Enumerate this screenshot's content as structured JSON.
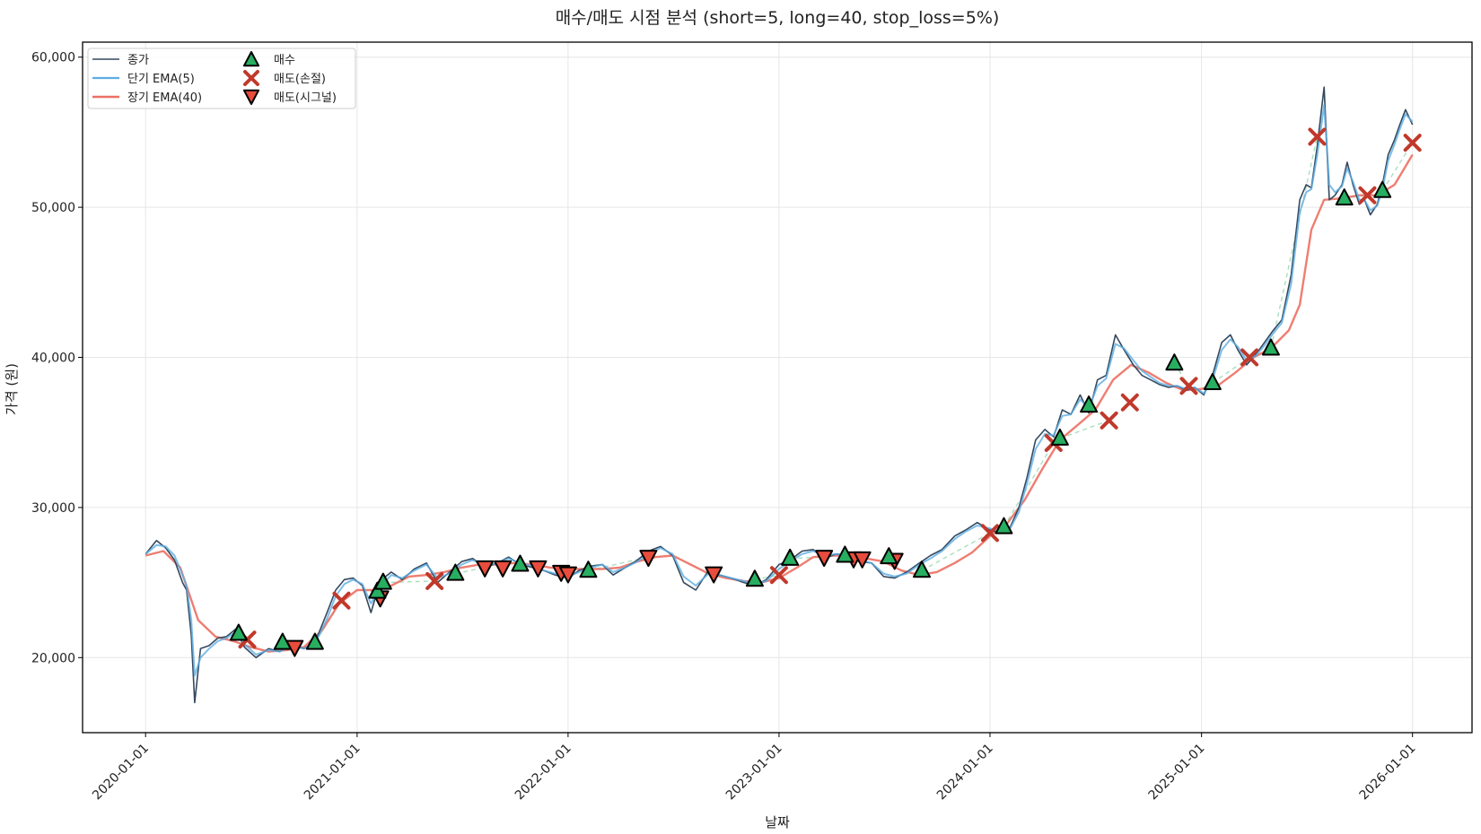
{
  "chart_data": {
    "type": "line",
    "title": "매수/매도 시점 분석 (short=5, long=40, stop_loss=5%)",
    "xlabel": "날짜",
    "ylabel": "가격 (원)",
    "ylim": [
      15000,
      61000
    ],
    "xlim": [
      "2019-09-14",
      "2026-04-14"
    ],
    "grid": true,
    "legend_position": "top-left",
    "x_ticks": [
      "2020-01-01",
      "2021-01-01",
      "2022-01-01",
      "2023-01-01",
      "2024-01-01",
      "2025-01-01",
      "2026-01-01"
    ],
    "y_ticks": [
      20000,
      30000,
      40000,
      50000,
      60000
    ],
    "y_tick_labels": [
      "20,000",
      "30,000",
      "40,000",
      "50,000",
      "60,000"
    ],
    "colors": {
      "close": "#34495e",
      "short_ema": "#5dade2",
      "long_ema": "#ec7063",
      "buy": "#27ae60",
      "sell_stop": "#c0392b",
      "sell_signal": "#e74c3c",
      "trade_line": "#a9dfbf"
    },
    "series": [
      {
        "name": "종가",
        "style": "line",
        "x": [
          "2020-01-01",
          "2020-01-20",
          "2020-02-05",
          "2020-02-20",
          "2020-03-05",
          "2020-03-12",
          "2020-03-20",
          "2020-03-26",
          "2020-04-05",
          "2020-04-20",
          "2020-05-05",
          "2020-05-20",
          "2020-06-05",
          "2020-06-20",
          "2020-07-10",
          "2020-08-01",
          "2020-08-20",
          "2020-09-10",
          "2020-10-01",
          "2020-10-20",
          "2020-11-10",
          "2020-11-25",
          "2020-12-10",
          "2020-12-25",
          "2021-01-10",
          "2021-01-25",
          "2021-02-10",
          "2021-03-01",
          "2021-03-20",
          "2021-04-10",
          "2021-05-01",
          "2021-05-20",
          "2021-06-10",
          "2021-07-01",
          "2021-07-20",
          "2021-08-10",
          "2021-09-01",
          "2021-09-20",
          "2021-10-10",
          "2021-11-01",
          "2021-11-20",
          "2021-12-10",
          "2022-01-01",
          "2022-01-20",
          "2022-02-10",
          "2022-03-01",
          "2022-03-20",
          "2022-04-10",
          "2022-05-01",
          "2022-05-20",
          "2022-06-10",
          "2022-07-01",
          "2022-07-20",
          "2022-08-10",
          "2022-09-01",
          "2022-09-20",
          "2022-10-10",
          "2022-11-01",
          "2022-11-20",
          "2022-12-10",
          "2023-01-01",
          "2023-01-20",
          "2023-02-10",
          "2023-03-01",
          "2023-03-20",
          "2023-04-10",
          "2023-05-01",
          "2023-05-20",
          "2023-06-10",
          "2023-07-01",
          "2023-07-20",
          "2023-08-10",
          "2023-09-01",
          "2023-09-20",
          "2023-10-10",
          "2023-11-01",
          "2023-11-20",
          "2023-12-10",
          "2024-01-01",
          "2024-01-20",
          "2024-02-05",
          "2024-02-20",
          "2024-03-05",
          "2024-03-20",
          "2024-04-05",
          "2024-04-20",
          "2024-05-05",
          "2024-05-20",
          "2024-06-05",
          "2024-06-20",
          "2024-07-05",
          "2024-07-20",
          "2024-08-05",
          "2024-08-20",
          "2024-09-05",
          "2024-09-20",
          "2024-10-05",
          "2024-10-20",
          "2024-11-05",
          "2024-11-20",
          "2024-12-05",
          "2024-12-20",
          "2025-01-05",
          "2025-01-20",
          "2025-02-05",
          "2025-02-20",
          "2025-03-05",
          "2025-03-20",
          "2025-04-05",
          "2025-04-20",
          "2025-05-05",
          "2025-05-20",
          "2025-06-05",
          "2025-06-20",
          "2025-07-01",
          "2025-07-10",
          "2025-07-20",
          "2025-08-01",
          "2025-08-10",
          "2025-08-20",
          "2025-09-01",
          "2025-09-10",
          "2025-09-20",
          "2025-10-01",
          "2025-10-10",
          "2025-10-20",
          "2025-11-01",
          "2025-11-10",
          "2025-11-20",
          "2025-12-01",
          "2025-12-10",
          "2025-12-20",
          "2026-01-01"
        ],
        "values": [
          26900,
          27800,
          27300,
          26500,
          25000,
          24500,
          21500,
          17000,
          20600,
          20800,
          21300,
          21400,
          21900,
          20700,
          20000,
          20600,
          20400,
          20900,
          20600,
          21000,
          23000,
          24500,
          25200,
          25300,
          24800,
          23000,
          25100,
          25700,
          25200,
          25900,
          26300,
          25000,
          25700,
          26400,
          26600,
          26000,
          26300,
          26700,
          26200,
          26000,
          25800,
          25500,
          25300,
          25800,
          26100,
          26200,
          25500,
          26000,
          26500,
          27100,
          27400,
          26800,
          25000,
          24500,
          25800,
          25500,
          25300,
          25000,
          24800,
          25200,
          26200,
          26500,
          27100,
          27200,
          26600,
          26900,
          26800,
          26400,
          26300,
          25400,
          25300,
          25700,
          26300,
          26800,
          27200,
          28100,
          28500,
          29000,
          28500,
          28300,
          28700,
          30000,
          32000,
          34500,
          35200,
          34700,
          36500,
          36200,
          37500,
          36300,
          38500,
          38800,
          41500,
          40500,
          39500,
          38800,
          38500,
          38200,
          38000,
          38100,
          37800,
          38000,
          37500,
          38800,
          41000,
          41500,
          40500,
          39500,
          40200,
          41000,
          41800,
          42500,
          45500,
          50500,
          51500,
          51300,
          54000,
          58000,
          50500,
          50800,
          51500,
          53000,
          51500,
          50200,
          50500,
          49500,
          50200,
          51500,
          53500,
          54500,
          55500,
          56500,
          55500
        ]
      },
      {
        "name": "단기 EMA(5)",
        "style": "line",
        "x": [
          "2020-01-01",
          "2020-01-20",
          "2020-02-05",
          "2020-02-20",
          "2020-03-05",
          "2020-03-12",
          "2020-03-20",
          "2020-03-26",
          "2020-04-05",
          "2020-04-20",
          "2020-05-05",
          "2020-05-20",
          "2020-06-05",
          "2020-06-20",
          "2020-07-10",
          "2020-08-01",
          "2020-08-20",
          "2020-09-10",
          "2020-10-01",
          "2020-10-20",
          "2020-11-10",
          "2020-11-25",
          "2020-12-10",
          "2020-12-25",
          "2021-01-10",
          "2021-01-25",
          "2021-02-10",
          "2021-03-01",
          "2021-03-20",
          "2021-04-10",
          "2021-05-01",
          "2021-05-20",
          "2021-06-10",
          "2021-07-01",
          "2021-07-20",
          "2021-08-10",
          "2021-09-01",
          "2021-09-20",
          "2021-10-10",
          "2021-11-01",
          "2021-11-20",
          "2021-12-10",
          "2022-01-01",
          "2022-01-20",
          "2022-02-10",
          "2022-03-01",
          "2022-03-20",
          "2022-04-10",
          "2022-05-01",
          "2022-05-20",
          "2022-06-10",
          "2022-07-01",
          "2022-07-20",
          "2022-08-10",
          "2022-09-01",
          "2022-09-20",
          "2022-10-10",
          "2022-11-01",
          "2022-11-20",
          "2022-12-10",
          "2023-01-01",
          "2023-01-20",
          "2023-02-10",
          "2023-03-01",
          "2023-03-20",
          "2023-04-10",
          "2023-05-01",
          "2023-05-20",
          "2023-06-10",
          "2023-07-01",
          "2023-07-20",
          "2023-08-10",
          "2023-09-01",
          "2023-09-20",
          "2023-10-10",
          "2023-11-01",
          "2023-11-20",
          "2023-12-10",
          "2024-01-01",
          "2024-01-20",
          "2024-02-05",
          "2024-02-20",
          "2024-03-05",
          "2024-03-20",
          "2024-04-05",
          "2024-04-20",
          "2024-05-05",
          "2024-05-20",
          "2024-06-05",
          "2024-06-20",
          "2024-07-05",
          "2024-07-20",
          "2024-08-05",
          "2024-08-20",
          "2024-09-05",
          "2024-09-20",
          "2024-10-05",
          "2024-10-20",
          "2024-11-05",
          "2024-11-20",
          "2024-12-05",
          "2024-12-20",
          "2025-01-05",
          "2025-01-20",
          "2025-02-05",
          "2025-02-20",
          "2025-03-05",
          "2025-03-20",
          "2025-04-05",
          "2025-04-20",
          "2025-05-05",
          "2025-05-20",
          "2025-06-05",
          "2025-06-20",
          "2025-07-01",
          "2025-07-10",
          "2025-07-20",
          "2025-08-01",
          "2025-08-10",
          "2025-08-20",
          "2025-09-01",
          "2025-09-10",
          "2025-09-20",
          "2025-10-01",
          "2025-10-10",
          "2025-10-20",
          "2025-11-01",
          "2025-11-10",
          "2025-11-20",
          "2025-12-01",
          "2025-12-10",
          "2025-12-20",
          "2026-01-01"
        ],
        "values": [
          26900,
          27500,
          27400,
          26800,
          25500,
          24800,
          22500,
          18800,
          20000,
          20600,
          21100,
          21300,
          21700,
          20900,
          20200,
          20500,
          20400,
          20800,
          20600,
          20900,
          22600,
          24100,
          24900,
          25200,
          24900,
          23600,
          24700,
          25500,
          25300,
          25800,
          26200,
          25300,
          25600,
          26200,
          26500,
          26100,
          26300,
          26600,
          26300,
          26100,
          25800,
          25600,
          25400,
          25700,
          26000,
          26200,
          25700,
          26000,
          26400,
          26900,
          27300,
          26900,
          25400,
          24800,
          25600,
          25500,
          25300,
          25100,
          24900,
          25100,
          25900,
          26400,
          26900,
          27100,
          26800,
          26900,
          26800,
          26500,
          26300,
          25600,
          25400,
          25600,
          26200,
          26600,
          27100,
          27900,
          28400,
          28800,
          28600,
          28400,
          28600,
          29700,
          31600,
          33900,
          34900,
          34800,
          36100,
          36200,
          37200,
          36600,
          38100,
          38600,
          40900,
          40600,
          39800,
          39100,
          38700,
          38300,
          38100,
          38100,
          37900,
          38000,
          37600,
          38500,
          40500,
          41200,
          40700,
          39800,
          40100,
          40800,
          41600,
          42300,
          44900,
          49700,
          51000,
          51200,
          53400,
          56800,
          51500,
          51000,
          51400,
          52600,
          51700,
          50500,
          50500,
          49800,
          50100,
          51200,
          53100,
          54200,
          55200,
          56200,
          55700
        ]
      },
      {
        "name": "장기 EMA(40)",
        "style": "line",
        "x": [
          "2020-01-01",
          "2020-02-01",
          "2020-03-01",
          "2020-04-01",
          "2020-05-01",
          "2020-06-01",
          "2020-07-01",
          "2020-08-01",
          "2020-09-01",
          "2020-10-01",
          "2020-11-01",
          "2020-12-01",
          "2021-01-01",
          "2021-02-01",
          "2021-03-01",
          "2021-04-01",
          "2021-05-01",
          "2021-06-01",
          "2021-07-01",
          "2021-08-01",
          "2021-09-01",
          "2021-10-01",
          "2021-11-01",
          "2021-12-01",
          "2022-01-01",
          "2022-02-01",
          "2022-03-01",
          "2022-04-01",
          "2022-05-01",
          "2022-06-01",
          "2022-07-01",
          "2022-08-01",
          "2022-09-01",
          "2022-10-01",
          "2022-11-01",
          "2022-12-01",
          "2023-01-01",
          "2023-02-01",
          "2023-03-01",
          "2023-04-01",
          "2023-05-01",
          "2023-06-01",
          "2023-07-01",
          "2023-08-01",
          "2023-09-01",
          "2023-10-01",
          "2023-11-01",
          "2023-12-01",
          "2024-01-01",
          "2024-02-01",
          "2024-03-01",
          "2024-04-01",
          "2024-05-01",
          "2024-06-01",
          "2024-07-01",
          "2024-08-01",
          "2024-09-01",
          "2024-10-01",
          "2024-11-01",
          "2024-12-01",
          "2025-01-01",
          "2025-02-01",
          "2025-03-01",
          "2025-04-01",
          "2025-05-01",
          "2025-06-01",
          "2025-06-20",
          "2025-07-10",
          "2025-08-01",
          "2025-09-01",
          "2025-10-01",
          "2025-11-01",
          "2025-12-01",
          "2026-01-01"
        ],
        "values": [
          26800,
          27100,
          26000,
          22500,
          21400,
          21100,
          20700,
          20400,
          20500,
          20700,
          21800,
          23600,
          24500,
          24500,
          24800,
          25400,
          25500,
          25700,
          26000,
          26200,
          26200,
          26300,
          26200,
          26000,
          25900,
          25900,
          25900,
          26000,
          26400,
          26700,
          26800,
          26200,
          25600,
          25300,
          25100,
          25000,
          25300,
          26000,
          26700,
          26800,
          26800,
          26600,
          26400,
          25800,
          25500,
          25700,
          26300,
          27000,
          28100,
          29000,
          30500,
          32600,
          34500,
          35500,
          36500,
          38500,
          39500,
          39000,
          38300,
          37800,
          37900,
          38200,
          39000,
          40000,
          40600,
          41800,
          43500,
          48500,
          50500,
          50600,
          50800,
          50800,
          51500,
          53500
        ]
      }
    ],
    "markers": {
      "buy": {
        "name": "매수",
        "points": [
          [
            "2020-06-10",
            21600
          ],
          [
            "2020-08-25",
            21000
          ],
          [
            "2020-10-20",
            21000
          ],
          [
            "2021-02-05",
            24400
          ],
          [
            "2021-02-15",
            25000
          ],
          [
            "2021-06-20",
            25600
          ],
          [
            "2021-10-10",
            26200
          ],
          [
            "2022-02-05",
            25800
          ],
          [
            "2022-11-20",
            25200
          ],
          [
            "2023-01-20",
            26600
          ],
          [
            "2023-04-25",
            26800
          ],
          [
            "2023-07-10",
            26700
          ],
          [
            "2023-09-05",
            25800
          ],
          [
            "2024-01-25",
            28700
          ],
          [
            "2024-05-01",
            34600
          ],
          [
            "2024-06-20",
            36800
          ],
          [
            "2024-11-15",
            39600
          ],
          [
            "2025-01-20",
            38300
          ],
          [
            "2025-05-01",
            40600
          ],
          [
            "2025-09-05",
            50600
          ],
          [
            "2025-11-10",
            51100
          ]
        ]
      },
      "sell_stop": {
        "name": "매도(손절)",
        "points": [
          [
            "2020-06-25",
            21200
          ],
          [
            "2020-12-05",
            23800
          ],
          [
            "2021-05-15",
            25100
          ],
          [
            "2023-01-01",
            25500
          ],
          [
            "2024-01-01",
            28300
          ],
          [
            "2024-04-20",
            34300
          ],
          [
            "2024-07-25",
            35800
          ],
          [
            "2024-08-30",
            37000
          ],
          [
            "2024-12-10",
            38100
          ],
          [
            "2025-03-25",
            40000
          ],
          [
            "2025-07-20",
            54700
          ],
          [
            "2025-10-15",
            50800
          ],
          [
            "2026-01-01",
            54300
          ]
        ]
      },
      "sell_signal": {
        "name": "매도(시그널)",
        "points": [
          [
            "2020-09-15",
            20700
          ],
          [
            "2021-02-10",
            24000
          ],
          [
            "2021-08-10",
            26000
          ],
          [
            "2021-09-10",
            26000
          ],
          [
            "2021-11-10",
            26000
          ],
          [
            "2021-12-20",
            25700
          ],
          [
            "2022-01-01",
            25600
          ],
          [
            "2022-05-20",
            26700
          ],
          [
            "2022-09-10",
            25600
          ],
          [
            "2023-03-20",
            26700
          ],
          [
            "2023-05-10",
            26600
          ],
          [
            "2023-05-25",
            26600
          ],
          [
            "2023-07-20",
            26500
          ]
        ]
      }
    },
    "legend": [
      "종가",
      "단기 EMA(5)",
      "장기 EMA(40)",
      "매수",
      "매도(손절)",
      "매도(시그널)"
    ]
  }
}
